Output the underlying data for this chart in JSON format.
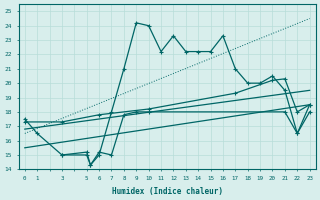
{
  "xlabel": "Humidex (Indice chaleur)",
  "bg_color": "#d8eeec",
  "line_color": "#006666",
  "grid_color": "#b8ddd9",
  "xlim": [
    -0.5,
    23.5
  ],
  "ylim": [
    14,
    25.5
  ],
  "yticks": [
    14,
    15,
    16,
    17,
    18,
    19,
    20,
    21,
    22,
    23,
    24,
    25
  ],
  "xtick_labels": [
    "0",
    "1",
    "",
    "3",
    "",
    "5",
    "6",
    "7",
    "8",
    "9",
    "10",
    "11",
    "12",
    "13",
    "14",
    "15",
    "16",
    "17",
    "18",
    "19",
    "20",
    "21",
    "22",
    "23"
  ],
  "series_main": {
    "x": [
      0,
      1,
      3,
      5,
      5.3,
      6,
      7,
      8,
      9,
      10,
      11,
      12,
      13,
      14,
      15,
      16,
      17,
      18,
      19,
      20,
      21,
      22,
      23
    ],
    "y": [
      17.5,
      16.5,
      15.0,
      15.0,
      14.3,
      15.0,
      18.0,
      21.0,
      24.2,
      24.0,
      22.2,
      23.3,
      22.2,
      22.2,
      22.2,
      23.3,
      21.0,
      20.0,
      20.0,
      20.5,
      19.5,
      16.5,
      18.5
    ]
  },
  "series_dotted": {
    "x": [
      0,
      23
    ],
    "y": [
      16.5,
      24.5
    ]
  },
  "series_line1": {
    "x": [
      0,
      3,
      6,
      10,
      17,
      20,
      21,
      22,
      23
    ],
    "y": [
      17.3,
      17.3,
      17.8,
      18.2,
      19.3,
      20.2,
      20.3,
      18.0,
      18.5
    ]
  },
  "series_line2": {
    "x": [
      0,
      23
    ],
    "y": [
      16.8,
      19.5
    ]
  },
  "series_line3": {
    "x": [
      0,
      23
    ],
    "y": [
      15.5,
      18.5
    ]
  },
  "series_zigzag2": {
    "x": [
      3,
      5,
      5.3,
      6,
      7,
      8,
      9,
      10,
      21,
      22,
      23
    ],
    "y": [
      15.0,
      15.2,
      14.3,
      15.2,
      15.0,
      17.8,
      18.0,
      18.0,
      18.0,
      16.5,
      18.0
    ]
  }
}
